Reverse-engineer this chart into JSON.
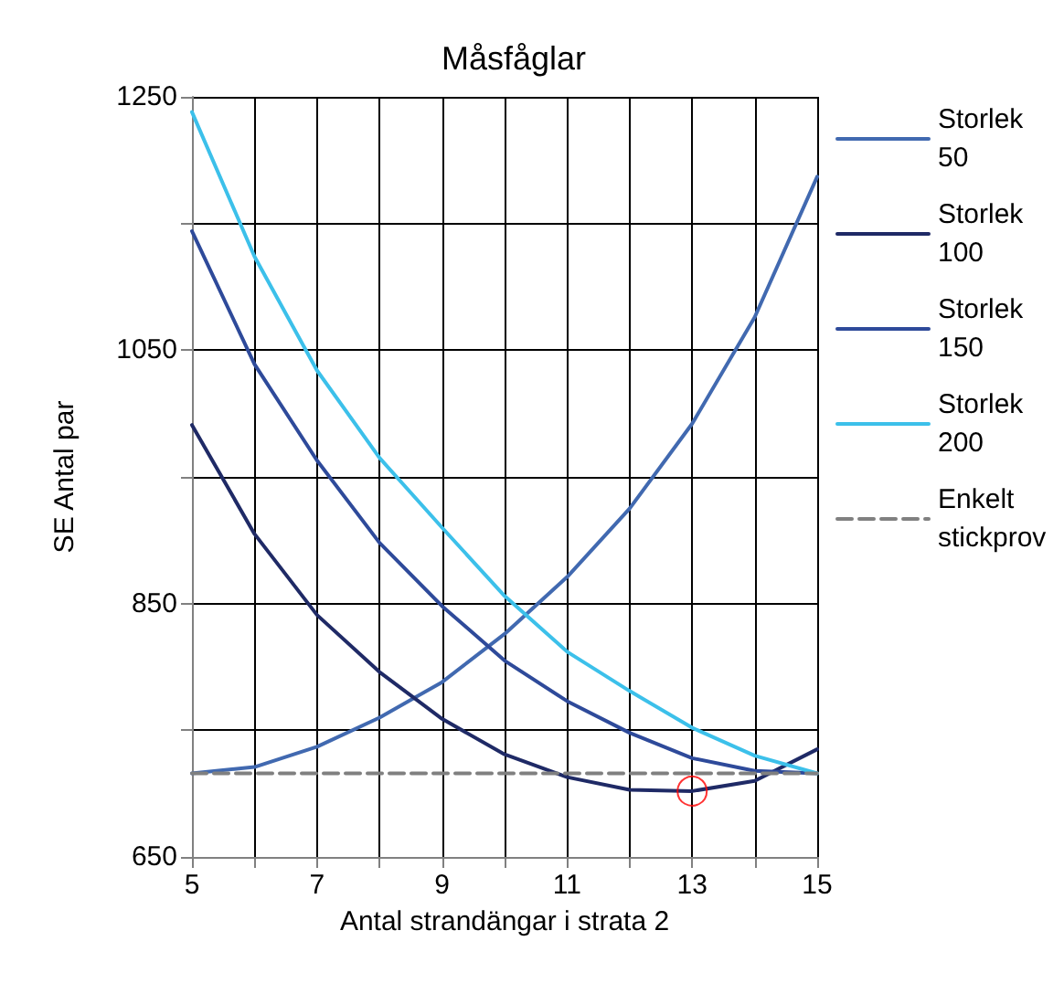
{
  "chart_data": {
    "type": "line",
    "title": "Måsfåglar",
    "xlabel": "Antal strandängar i strata 2",
    "ylabel": "SE Antal par",
    "x": [
      5,
      6,
      7,
      8,
      9,
      10,
      11,
      12,
      13,
      14,
      15
    ],
    "series": [
      {
        "name": "Storlek 50",
        "color": "#4169b0",
        "values": [
          716,
          721,
          737,
          760,
          788,
          826,
          871,
          925,
          992,
          1076,
          1187
        ]
      },
      {
        "name": "Storlek 100",
        "color": "#1f2a66",
        "values": [
          991,
          905,
          841,
          796,
          759,
          731,
          713,
          703,
          702,
          710,
          735
        ]
      },
      {
        "name": "Storlek 150",
        "color": "#2e4a9a",
        "values": [
          1144,
          1039,
          963,
          898,
          848,
          805,
          773,
          748,
          728,
          718,
          716
        ]
      },
      {
        "name": "Storlek 200",
        "color": "#3cc0ea",
        "values": [
          1238,
          1124,
          1034,
          965,
          910,
          856,
          812,
          781,
          752,
          730,
          716
        ]
      },
      {
        "name": "Enkelt stickprov",
        "color": "#808080",
        "line_style": "dashed",
        "values": [
          716,
          716,
          716,
          716,
          716,
          716,
          716,
          716,
          716,
          716,
          716
        ]
      },
      {
        "type": "scatter",
        "color": "#ff0000",
        "marker": "circle",
        "x": [
          13
        ],
        "values": [
          702
        ]
      }
    ],
    "xlim": [
      5,
      15
    ],
    "xticks": [
      5,
      {
        "value": 6,
        "label": null
      },
      7,
      {
        "value": 8,
        "label": null
      },
      9,
      {
        "value": 10,
        "label": null
      },
      11,
      {
        "value": 12,
        "label": null
      },
      13,
      {
        "value": 14,
        "label": null
      },
      15
    ],
    "ylim": [
      650,
      1250
    ],
    "yticks": [
      650,
      {
        "value": 750,
        "label": null
      },
      850,
      {
        "value": 950,
        "label": null
      },
      1050,
      {
        "value": 1150,
        "label": null
      },
      1250
    ],
    "grid": true,
    "legend": "right",
    "line_style": "solid"
  }
}
